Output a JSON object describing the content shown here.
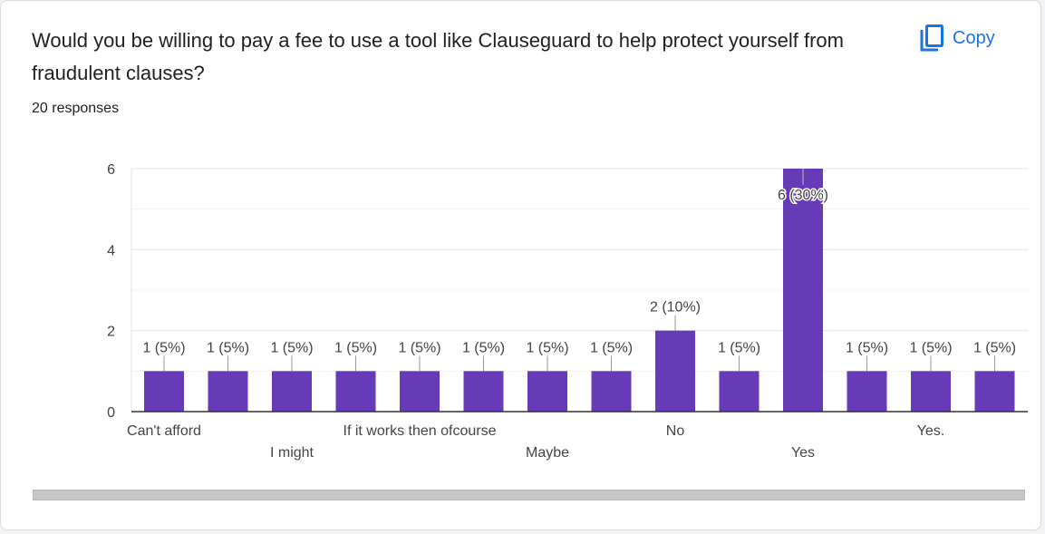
{
  "question": {
    "title": "Would you be willing to pay a fee to use a tool like Clauseguard to help protect yourself from fraudulent clauses?",
    "responses": "20 responses"
  },
  "copy": {
    "label": "Copy",
    "icon": "copy-icon",
    "color": "#1a73e8"
  },
  "chart_data": {
    "type": "bar",
    "categories": [
      "Can't afford",
      "",
      "I might",
      "",
      "If it works then ofcourse",
      "",
      "Maybe",
      "",
      "No",
      "",
      "Yes",
      "",
      "Yes.",
      ""
    ],
    "values": [
      1,
      1,
      1,
      1,
      1,
      1,
      1,
      1,
      2,
      1,
      6,
      1,
      1,
      1
    ],
    "data_labels": [
      "1 (5%)",
      "1 (5%)",
      "1 (5%)",
      "1 (5%)",
      "1 (5%)",
      "1 (5%)",
      "1 (5%)",
      "1 (5%)",
      "2 (10%)",
      "1 (5%)",
      "6 (30%)",
      "1 (5%)",
      "1 (5%)",
      "1 (5%)"
    ],
    "y_ticks": [
      0,
      2,
      4,
      6
    ],
    "ylim": [
      0,
      6
    ],
    "grid": true,
    "legend": "none",
    "bar_color": "#673ab7"
  }
}
